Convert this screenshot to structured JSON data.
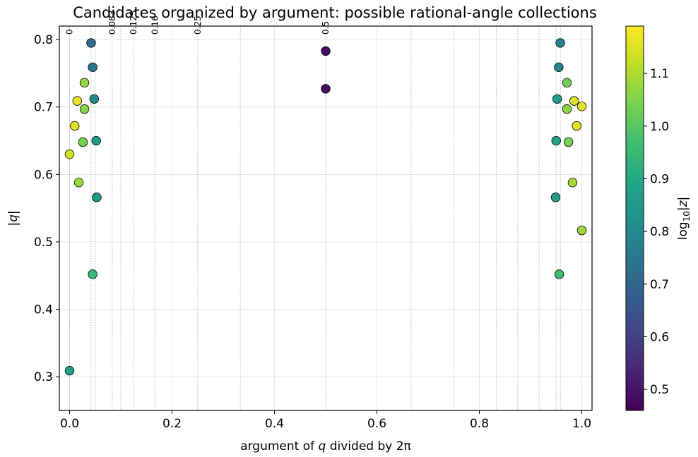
{
  "chart_data": {
    "type": "scatter",
    "title": "Candidates organized by argument: possible rational-angle collections",
    "xlabel": "argument of q divided by 2π",
    "ylabel": "|q|",
    "colorbar_label": "log10|z|",
    "xlim": [
      -0.02,
      1.02
    ],
    "ylim": [
      0.25,
      0.82
    ],
    "xticks": [
      0.0,
      0.2,
      0.4,
      0.6,
      0.8,
      1.0
    ],
    "xtick_labels": [
      "0.0",
      "0.2",
      "0.4",
      "0.6",
      "0.8",
      "1.0"
    ],
    "yticks": [
      0.3,
      0.4,
      0.5,
      0.6,
      0.7,
      0.8
    ],
    "ytick_labels": [
      "0.3",
      "0.4",
      "0.5",
      "0.6",
      "0.7",
      "0.8"
    ],
    "grid": true,
    "colorscale": "viridis",
    "color_range": [
      0.46,
      1.19
    ],
    "color_ticks": [
      0.5,
      0.6,
      0.7,
      0.8,
      0.9,
      1.0,
      1.1
    ],
    "color_tick_labels": [
      "0.5",
      "0.6",
      "0.7",
      "0.8",
      "0.9",
      "1.0",
      "1.1"
    ],
    "reference_lines": [
      {
        "x": 0.0,
        "label": "0"
      },
      {
        "x": 0.0417,
        "label": ""
      },
      {
        "x": 0.05,
        "label": ""
      },
      {
        "x": 0.0833,
        "label": "0.083"
      },
      {
        "x": 0.1,
        "label": ""
      },
      {
        "x": 0.125,
        "label": "0.125"
      },
      {
        "x": 0.1667,
        "label": "0.16"
      },
      {
        "x": 0.25,
        "label": "0.25"
      },
      {
        "x": 0.3333,
        "label": ""
      },
      {
        "x": 0.5,
        "label": "0.5"
      },
      {
        "x": 0.6667,
        "label": ""
      },
      {
        "x": 0.75,
        "label": ""
      },
      {
        "x": 0.8333,
        "label": ""
      },
      {
        "x": 0.875,
        "label": ""
      },
      {
        "x": 0.9167,
        "label": ""
      },
      {
        "x": 0.95,
        "label": ""
      },
      {
        "x": 0.9583,
        "label": ""
      }
    ],
    "points": [
      {
        "x": 0.042,
        "y": 0.795,
        "c": 0.72
      },
      {
        "x": 0.045,
        "y": 0.759,
        "c": 0.74
      },
      {
        "x": 0.029,
        "y": 0.736,
        "c": 1.07
      },
      {
        "x": 0.048,
        "y": 0.712,
        "c": 0.8
      },
      {
        "x": 0.015,
        "y": 0.709,
        "c": 1.17
      },
      {
        "x": 0.029,
        "y": 0.697,
        "c": 1.06
      },
      {
        "x": 0.01,
        "y": 0.672,
        "c": 1.16
      },
      {
        "x": 0.026,
        "y": 0.648,
        "c": 1.04
      },
      {
        "x": 0.052,
        "y": 0.65,
        "c": 0.86
      },
      {
        "x": 0.0,
        "y": 0.63,
        "c": 1.14
      },
      {
        "x": 0.018,
        "y": 0.588,
        "c": 1.08
      },
      {
        "x": 0.053,
        "y": 0.566,
        "c": 0.85
      },
      {
        "x": 0.045,
        "y": 0.452,
        "c": 0.95
      },
      {
        "x": 0.0,
        "y": 0.309,
        "c": 0.87
      },
      {
        "x": 0.5,
        "y": 0.783,
        "c": 0.48
      },
      {
        "x": 0.5,
        "y": 0.727,
        "c": 0.48
      },
      {
        "x": 0.958,
        "y": 0.795,
        "c": 0.78
      },
      {
        "x": 0.955,
        "y": 0.759,
        "c": 0.78
      },
      {
        "x": 0.971,
        "y": 0.736,
        "c": 1.03
      },
      {
        "x": 0.952,
        "y": 0.712,
        "c": 0.86
      },
      {
        "x": 0.985,
        "y": 0.709,
        "c": 1.15
      },
      {
        "x": 0.971,
        "y": 0.697,
        "c": 1.06
      },
      {
        "x": 1.0,
        "y": 0.701,
        "c": 1.16
      },
      {
        "x": 0.99,
        "y": 0.672,
        "c": 1.16
      },
      {
        "x": 0.95,
        "y": 0.65,
        "c": 0.88
      },
      {
        "x": 0.974,
        "y": 0.648,
        "c": 1.04
      },
      {
        "x": 0.982,
        "y": 0.588,
        "c": 1.09
      },
      {
        "x": 0.949,
        "y": 0.566,
        "c": 0.86
      },
      {
        "x": 1.0,
        "y": 0.517,
        "c": 1.08
      },
      {
        "x": 0.956,
        "y": 0.452,
        "c": 0.96
      }
    ]
  }
}
